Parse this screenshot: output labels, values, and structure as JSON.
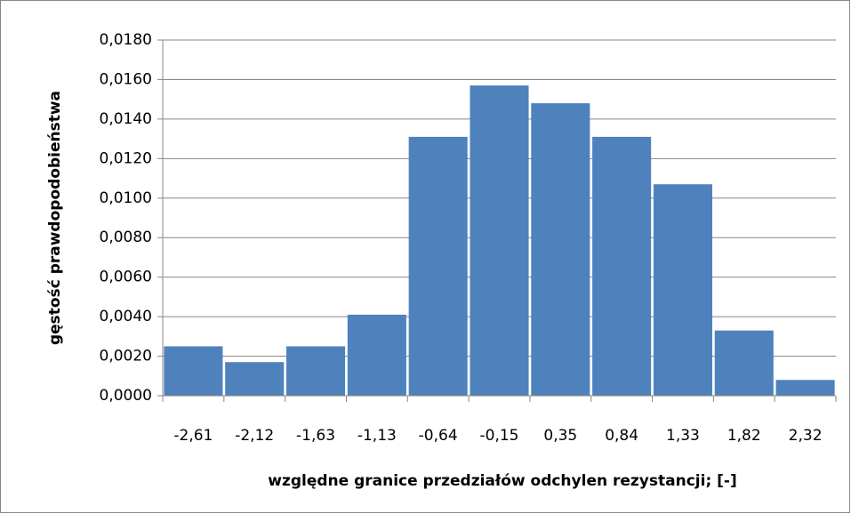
{
  "chart_data": {
    "type": "bar",
    "categories": [
      "-2,61",
      "-2,12",
      "-1,63",
      "-1,13",
      "-0,64",
      "-0,15",
      "0,35",
      "0,84",
      "1,33",
      "1,82",
      "2,32"
    ],
    "values": [
      0.0025,
      0.0017,
      0.0025,
      0.0041,
      0.0131,
      0.0157,
      0.0148,
      0.0131,
      0.0107,
      0.0033,
      0.0008
    ],
    "color": "#4f81bd",
    "xlabel": "względne granice przedziałów odchylen rezystancji; [-]",
    "ylabel": "gęstość prawdopodobieństwa",
    "ylim": [
      0,
      0.018
    ],
    "yticks": [
      {
        "value": 0,
        "label": "0,0000"
      },
      {
        "value": 0.002,
        "label": "0,0020"
      },
      {
        "value": 0.004,
        "label": "0,0040"
      },
      {
        "value": 0.006,
        "label": "0,0060"
      },
      {
        "value": 0.008,
        "label": "0,0080"
      },
      {
        "value": 0.01,
        "label": "0,0100"
      },
      {
        "value": 0.012,
        "label": "0,0120"
      },
      {
        "value": 0.014,
        "label": "0,0140"
      },
      {
        "value": 0.016,
        "label": "0,0160"
      },
      {
        "value": 0.018,
        "label": "0,0180"
      }
    ],
    "grid": true
  }
}
